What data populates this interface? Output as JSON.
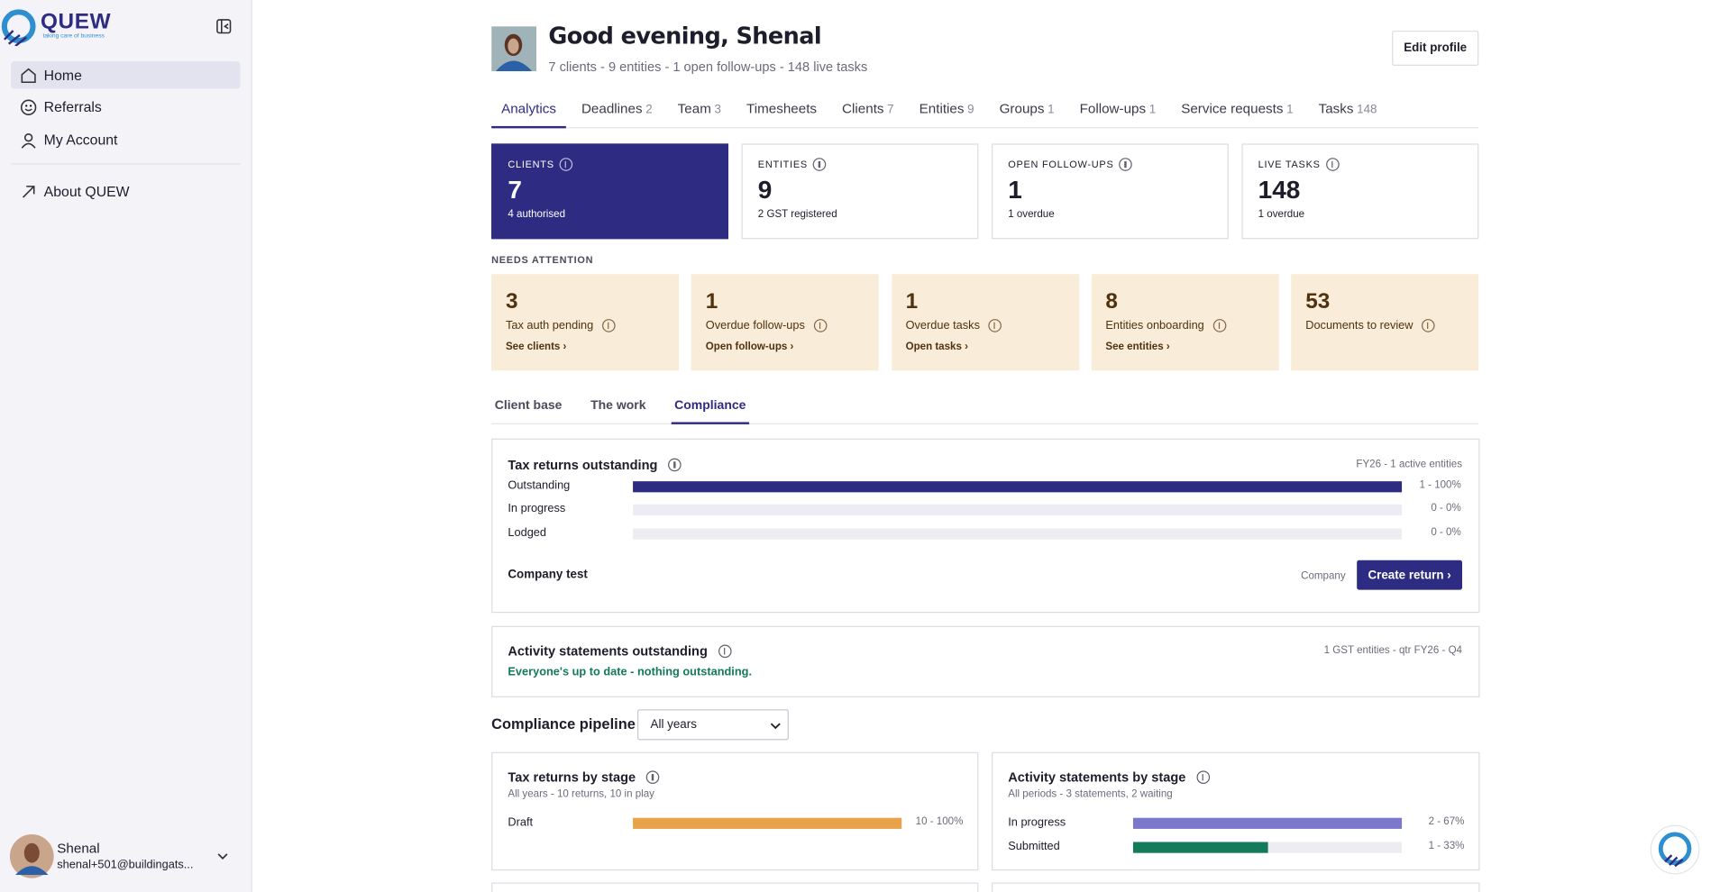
{
  "sidebar": {
    "logo": "QUEW",
    "tagline": "taking care of business",
    "nav": [
      "Home",
      "Referrals",
      "My Account"
    ],
    "about": "About QUEW",
    "user": {
      "name": "Shenal",
      "email": "shenal+501@buildingats..."
    }
  },
  "header": {
    "title": "Good evening, Shenal",
    "subtitle": "7 clients - 9 entities - 1 open follow-ups - 148 live tasks",
    "edit": "Edit profile"
  },
  "tabs": [
    {
      "label": "Analytics"
    },
    {
      "label": "Deadlines",
      "count": 2
    },
    {
      "label": "Team",
      "count": 3
    },
    {
      "label": "Timesheets"
    },
    {
      "label": "Clients",
      "count": 7
    },
    {
      "label": "Entities",
      "count": 9
    },
    {
      "label": "Groups",
      "count": 1
    },
    {
      "label": "Follow-ups",
      "count": 1
    },
    {
      "label": "Service requests",
      "count": 1
    },
    {
      "label": "Tasks",
      "count": 148
    }
  ],
  "stats": [
    {
      "label": "CLIENTS",
      "value": 7,
      "sub": "4 authorised"
    },
    {
      "label": "ENTITIES",
      "value": 9,
      "sub": "2 GST registered"
    },
    {
      "label": "OPEN FOLLOW-UPS",
      "value": 1,
      "sub": "1 overdue"
    },
    {
      "label": "LIVE TASKS",
      "value": 148,
      "sub": "1 overdue"
    }
  ],
  "attention": {
    "title": "NEEDS ATTENTION",
    "cards": [
      {
        "value": 3,
        "label": "Tax auth pending",
        "link": "See clients ›"
      },
      {
        "value": 1,
        "label": "Overdue follow-ups",
        "link": "Open follow-ups ›"
      },
      {
        "value": 1,
        "label": "Overdue tasks",
        "link": "Open tasks ›"
      },
      {
        "value": 8,
        "label": "Entities onboarding",
        "link": "See entities ›"
      },
      {
        "value": 53,
        "label": "Documents to review"
      }
    ]
  },
  "subtabs": [
    "Client base",
    "The work",
    "Compliance"
  ],
  "tax_returns": {
    "title": "Tax returns outstanding",
    "meta": "FY26 - 1 active entities",
    "rows": [
      {
        "label": "Outstanding",
        "count": 1,
        "value_label": "1 - 100%",
        "color": "#2e2c82"
      },
      {
        "label": "In progress",
        "count": 0,
        "value_label": "0 - 0%",
        "color": "#2e2c82"
      },
      {
        "label": "Lodged",
        "count": 0,
        "value_label": "0 - 0%",
        "color": "#2e2c82"
      }
    ],
    "entity": {
      "name": "Company test",
      "type": "Company",
      "action": "Create return ›"
    }
  },
  "activity": {
    "title": "Activity statements outstanding",
    "meta": "1 GST entities - qtr FY26 - Q4",
    "status": "Everyone's up to date - nothing outstanding."
  },
  "pipeline": {
    "title": "Compliance pipeline",
    "filter": "All years",
    "panels": [
      {
        "title": "Tax returns by stage",
        "sub": "All years - 10 returns, 10 in play",
        "rows": [
          {
            "label": "Draft",
            "count": 10,
            "value_label": "10 - 100%",
            "color": "#e8a24a"
          }
        ]
      },
      {
        "title": "Activity statements by stage",
        "sub": "All periods - 3 statements, 2 waiting",
        "rows": [
          {
            "label": "In progress",
            "count": 2,
            "value_label": "2 - 67%",
            "color": "#7b78cc"
          },
          {
            "label": "Submitted",
            "count": 1,
            "value_label": "1 - 33%",
            "color": "#137a5a"
          }
        ]
      }
    ]
  }
}
